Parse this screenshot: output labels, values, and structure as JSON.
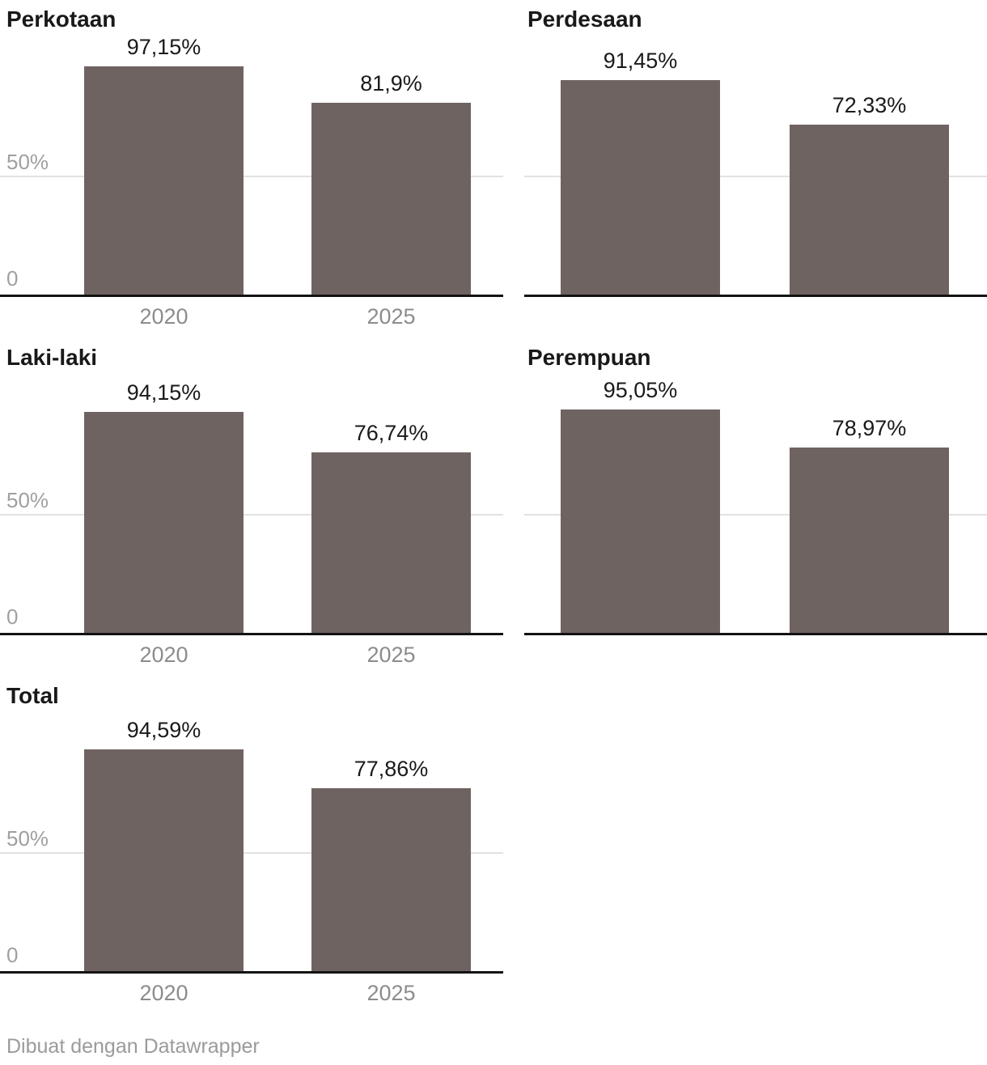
{
  "chart_data": {
    "type": "bar",
    "layout": "small-multiples-grid-2col",
    "categories": [
      "2020",
      "2025"
    ],
    "y_axis": {
      "ticks": [
        "0",
        "50%"
      ],
      "range": [
        0,
        100
      ],
      "gridline_at": 50,
      "grid": "on"
    },
    "bar_color": "#6f6361",
    "panels": [
      {
        "title": "Perkotaan",
        "values": [
          97.15,
          81.9
        ],
        "labels": [
          "97,15%",
          "81,9%"
        ],
        "x_labels_shown": true,
        "y_labels_shown": true
      },
      {
        "title": "Perdesaan",
        "values": [
          91.45,
          72.33
        ],
        "labels": [
          "91,45%",
          "72,33%"
        ],
        "x_labels_shown": false,
        "y_labels_shown": false
      },
      {
        "title": "Laki-laki",
        "values": [
          94.15,
          76.74
        ],
        "labels": [
          "94,15%",
          "76,74%"
        ],
        "x_labels_shown": true,
        "y_labels_shown": true
      },
      {
        "title": "Perempuan",
        "values": [
          95.05,
          78.97
        ],
        "labels": [
          "95,05%",
          "78,97%"
        ],
        "x_labels_shown": false,
        "y_labels_shown": false
      },
      {
        "title": "Total",
        "values": [
          94.59,
          77.86
        ],
        "labels": [
          "94,59%",
          "77,86%"
        ],
        "x_labels_shown": true,
        "y_labels_shown": true
      }
    ]
  },
  "footer": {
    "credit": "Dibuat dengan Datawrapper"
  }
}
